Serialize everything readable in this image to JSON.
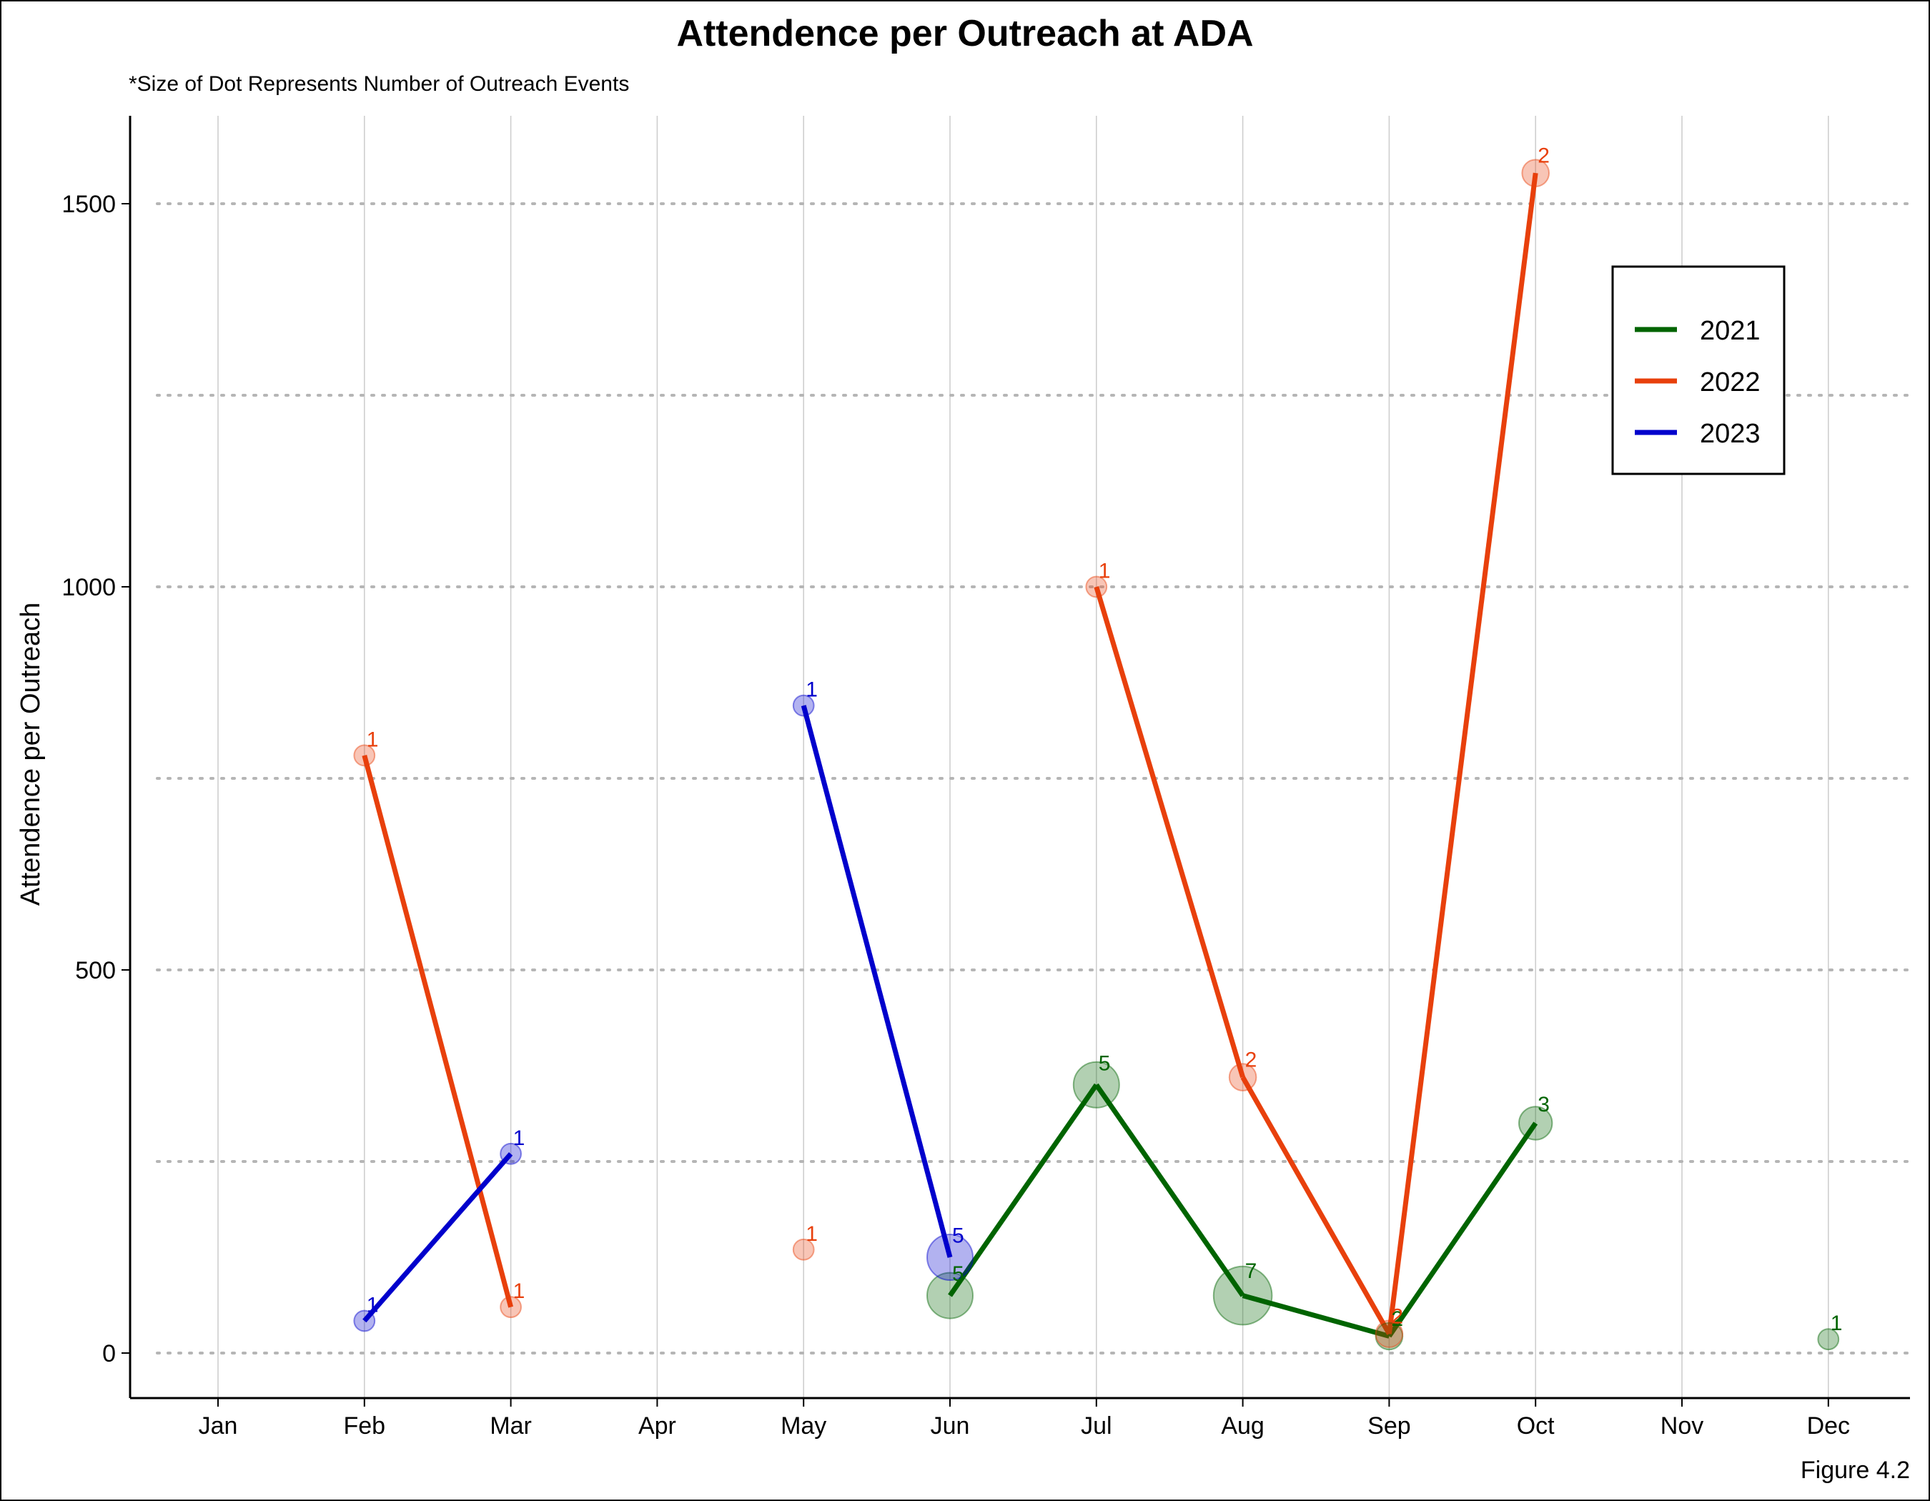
{
  "chart_data": {
    "type": "line",
    "title": "Attendence per Outreach at ADA",
    "subtitle": "*Size of Dot Represents Number of Outreach Events",
    "caption": "Figure 4.2",
    "xlabel": "",
    "ylabel": "Attendence per Outreach",
    "categories": [
      "Jan",
      "Feb",
      "Mar",
      "Apr",
      "May",
      "Jun",
      "Jul",
      "Aug",
      "Sep",
      "Oct",
      "Nov",
      "Dec"
    ],
    "ylim": [
      -60,
      1610
    ],
    "yticks": [
      0,
      500,
      1000,
      1500
    ],
    "grid": {
      "horizontal_dotted": [
        0,
        250,
        500,
        750,
        1000,
        1250,
        1500
      ],
      "vertical_at_months": true
    },
    "legend_position": "top-right",
    "series": [
      {
        "name": "2021",
        "color": "#006400",
        "points": [
          {
            "month": "Jun",
            "value": 75,
            "events": 5,
            "connected": true
          },
          {
            "month": "Jul",
            "value": 350,
            "events": 5,
            "connected": true
          },
          {
            "month": "Aug",
            "value": 75,
            "events": 7,
            "connected": true
          },
          {
            "month": "Sep",
            "value": 22,
            "events": 2,
            "connected": true
          },
          {
            "month": "Oct",
            "value": 300,
            "events": 3,
            "connected": true
          },
          {
            "month": "Dec",
            "value": 18,
            "events": 1,
            "connected": false
          }
        ]
      },
      {
        "name": "2022",
        "color": "#E8400C",
        "points": [
          {
            "month": "Feb",
            "value": 780,
            "events": 1,
            "connected": true
          },
          {
            "month": "Mar",
            "value": 60,
            "events": 1,
            "connected": true
          },
          {
            "month": "May",
            "value": 135,
            "events": 1,
            "connected": false
          },
          {
            "month": "Jul",
            "value": 1000,
            "events": 1,
            "connected": true
          },
          {
            "month": "Aug",
            "value": 360,
            "events": 2,
            "connected": true
          },
          {
            "month": "Sep",
            "value": 25,
            "events": 2,
            "connected": true
          },
          {
            "month": "Oct",
            "value": 1540,
            "events": 2,
            "connected": true
          }
        ]
      },
      {
        "name": "2023",
        "color": "#0000CC",
        "points": [
          {
            "month": "Feb",
            "value": 42,
            "events": 1,
            "connected": true
          },
          {
            "month": "Mar",
            "value": 260,
            "events": 1,
            "connected": true
          },
          {
            "month": "May",
            "value": 845,
            "events": 1,
            "connected": true
          },
          {
            "month": "Jun",
            "value": 125,
            "events": 5,
            "connected": true
          }
        ]
      }
    ]
  }
}
